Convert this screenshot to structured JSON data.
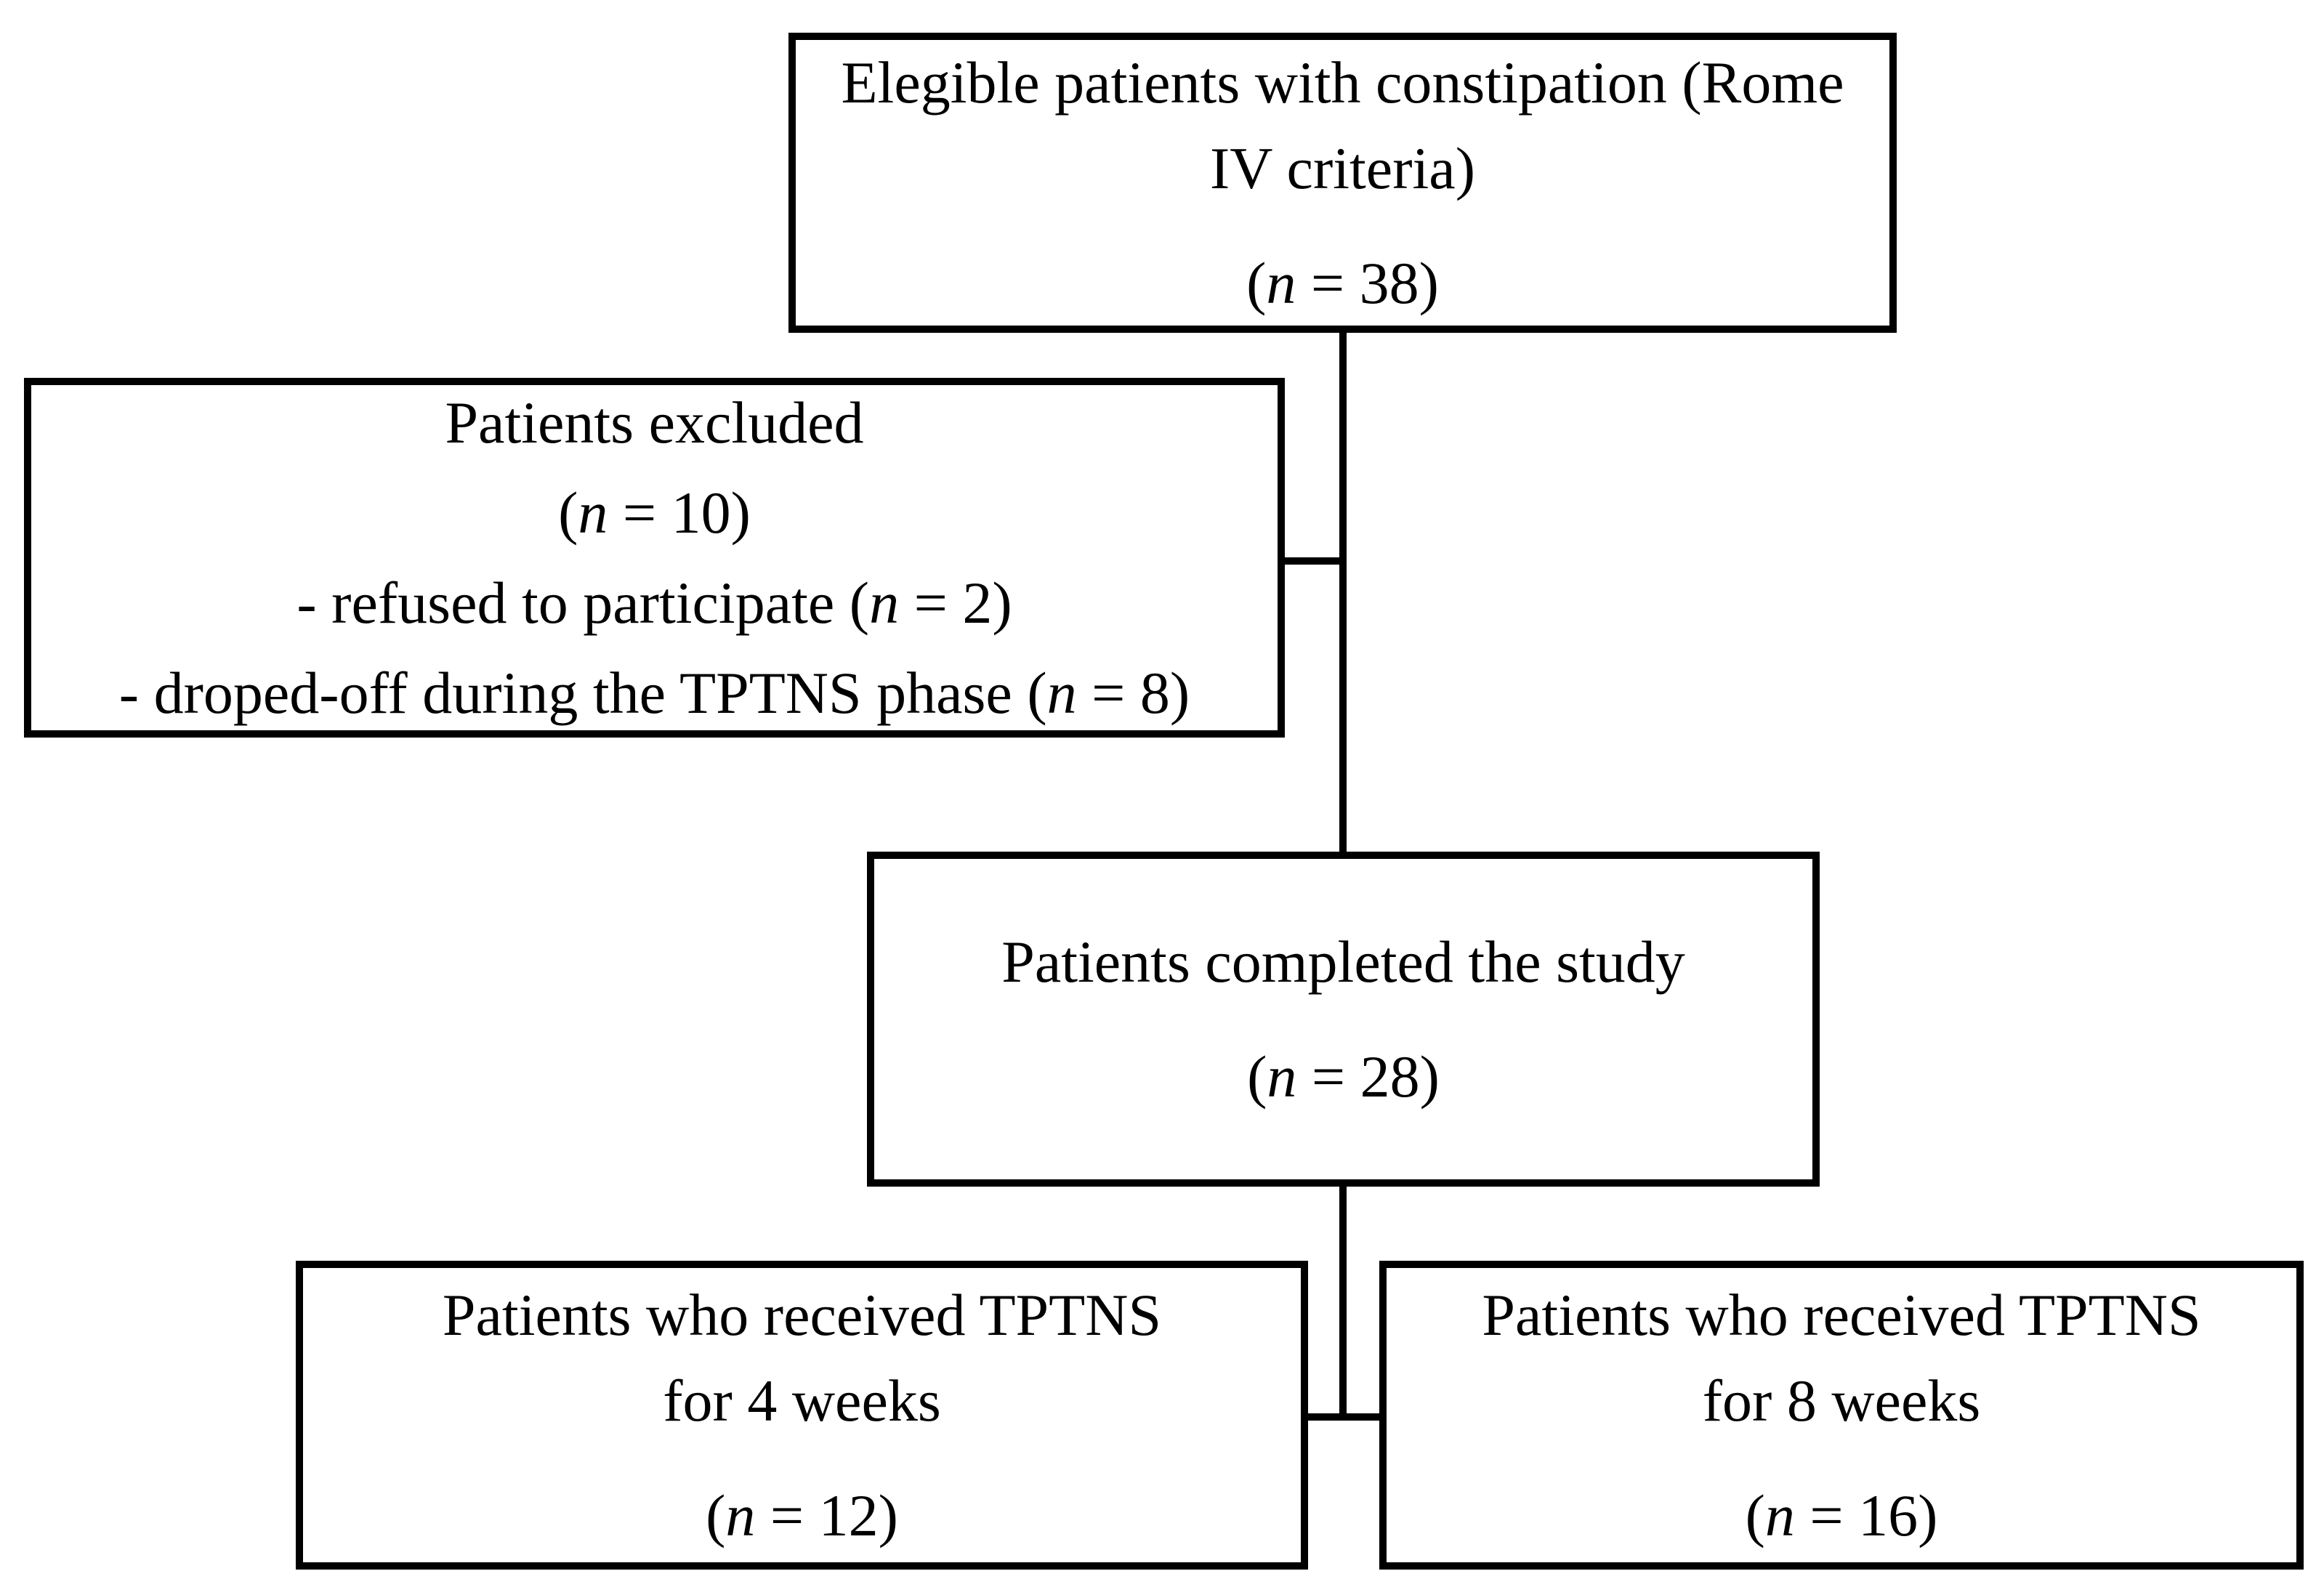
{
  "figure": {
    "type": "patient-flow-diagram",
    "background_color": "#ffffff",
    "line_color": "#000000",
    "boxes": [
      {
        "id": "eligible",
        "n": 38,
        "lines": [
          {
            "segs": [
              {
                "t": "Elegible patients with constipation (Rome"
              }
            ]
          },
          {
            "segs": [
              {
                "t": "IV criteria)"
              }
            ]
          },
          {
            "cls": "gap",
            "segs": [
              {
                "t": "("
              },
              {
                "t": "n",
                "i": true
              },
              {
                "t": " = 38)"
              }
            ]
          }
        ]
      },
      {
        "id": "excluded",
        "n": 10,
        "lines": [
          {
            "segs": [
              {
                "t": "Patients excluded"
              }
            ]
          },
          {
            "segs": [
              {
                "t": "("
              },
              {
                "t": "n",
                "i": true
              },
              {
                "t": " = 10)"
              }
            ]
          },
          {
            "segs": [
              {
                "t": "- refused to participate ("
              },
              {
                "t": "n",
                "i": true
              },
              {
                "t": " = 2)"
              }
            ]
          },
          {
            "segs": [
              {
                "t": "- droped-off during the TPTNS phase ("
              },
              {
                "t": "n",
                "i": true
              },
              {
                "t": " = 8)"
              }
            ]
          }
        ]
      },
      {
        "id": "completed",
        "n": 28,
        "lines": [
          {
            "segs": [
              {
                "t": "Patients completed the study"
              }
            ]
          },
          {
            "cls": "gap",
            "segs": [
              {
                "t": "("
              },
              {
                "t": "n",
                "i": true
              },
              {
                "t": " = 28)"
              }
            ]
          }
        ]
      },
      {
        "id": "tptns-4-weeks",
        "n": 12,
        "lines": [
          {
            "segs": [
              {
                "t": "Patients who received TPTNS"
              }
            ]
          },
          {
            "segs": [
              {
                "t": "for 4 weeks"
              }
            ]
          },
          {
            "cls": "gap",
            "segs": [
              {
                "t": "("
              },
              {
                "t": "n",
                "i": true
              },
              {
                "t": " = 12)"
              }
            ]
          }
        ]
      },
      {
        "id": "tptns-8-weeks",
        "n": 16,
        "lines": [
          {
            "segs": [
              {
                "t": "Patients who received TPTNS"
              }
            ]
          },
          {
            "segs": [
              {
                "t": "for 8 weeks"
              }
            ]
          },
          {
            "cls": "gap",
            "segs": [
              {
                "t": "("
              },
              {
                "t": "n",
                "i": true
              },
              {
                "t": " = 16)"
              }
            ]
          }
        ]
      }
    ]
  }
}
